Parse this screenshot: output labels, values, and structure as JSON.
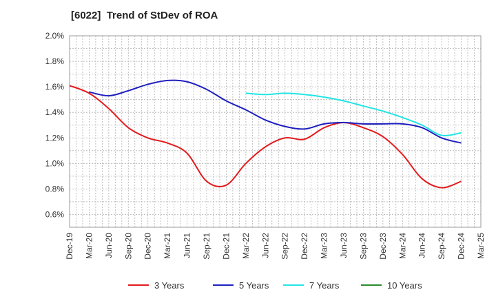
{
  "chart_data": {
    "type": "line",
    "title": "[6022]  Trend of StDev of ROA",
    "xlabel": "",
    "ylabel": "",
    "ylim": [
      0.5,
      2.0
    ],
    "yticks": [
      "2.0%",
      "1.8%",
      "1.6%",
      "1.4%",
      "1.2%",
      "1.0%",
      "0.8%",
      "0.6%"
    ],
    "ytick_values": [
      2.0,
      1.8,
      1.6,
      1.4,
      1.2,
      1.0,
      0.8,
      0.6
    ],
    "categories": [
      "Dec-19",
      "Mar-20",
      "Jun-20",
      "Sep-20",
      "Dec-20",
      "Mar-21",
      "Jun-21",
      "Sep-21",
      "Dec-21",
      "Mar-22",
      "Jun-22",
      "Sep-22",
      "Dec-22",
      "Mar-23",
      "Jun-23",
      "Sep-23",
      "Dec-23",
      "Mar-24",
      "Jun-24",
      "Sep-24",
      "Dec-24",
      "Mar-25"
    ],
    "grid": true,
    "legend_position": "bottom",
    "series": [
      {
        "name": "3 Years",
        "color": "#e31a1c",
        "values": [
          1.61,
          1.55,
          1.43,
          1.28,
          1.2,
          1.16,
          1.08,
          0.86,
          0.83,
          1.0,
          1.13,
          1.2,
          1.19,
          1.28,
          1.32,
          1.28,
          1.21,
          1.07,
          0.88,
          0.81,
          0.86,
          null
        ]
      },
      {
        "name": "5 Years",
        "color": "#1f1fbf",
        "values": [
          null,
          1.56,
          1.53,
          1.57,
          1.62,
          1.65,
          1.64,
          1.58,
          1.49,
          1.42,
          1.34,
          1.29,
          1.27,
          1.31,
          1.32,
          1.31,
          1.31,
          1.31,
          1.28,
          1.2,
          1.16,
          null
        ]
      },
      {
        "name": "7 Years",
        "color": "#22e5e5",
        "values": [
          null,
          null,
          null,
          null,
          null,
          null,
          null,
          null,
          null,
          1.55,
          1.54,
          1.55,
          1.54,
          1.52,
          1.49,
          1.45,
          1.41,
          1.36,
          1.3,
          1.22,
          1.24,
          null
        ]
      },
      {
        "name": "10 Years",
        "color": "#2a8a2a",
        "values": [
          null,
          null,
          null,
          null,
          null,
          null,
          null,
          null,
          null,
          null,
          null,
          null,
          null,
          null,
          null,
          null,
          null,
          null,
          null,
          null,
          null,
          null
        ]
      }
    ]
  }
}
